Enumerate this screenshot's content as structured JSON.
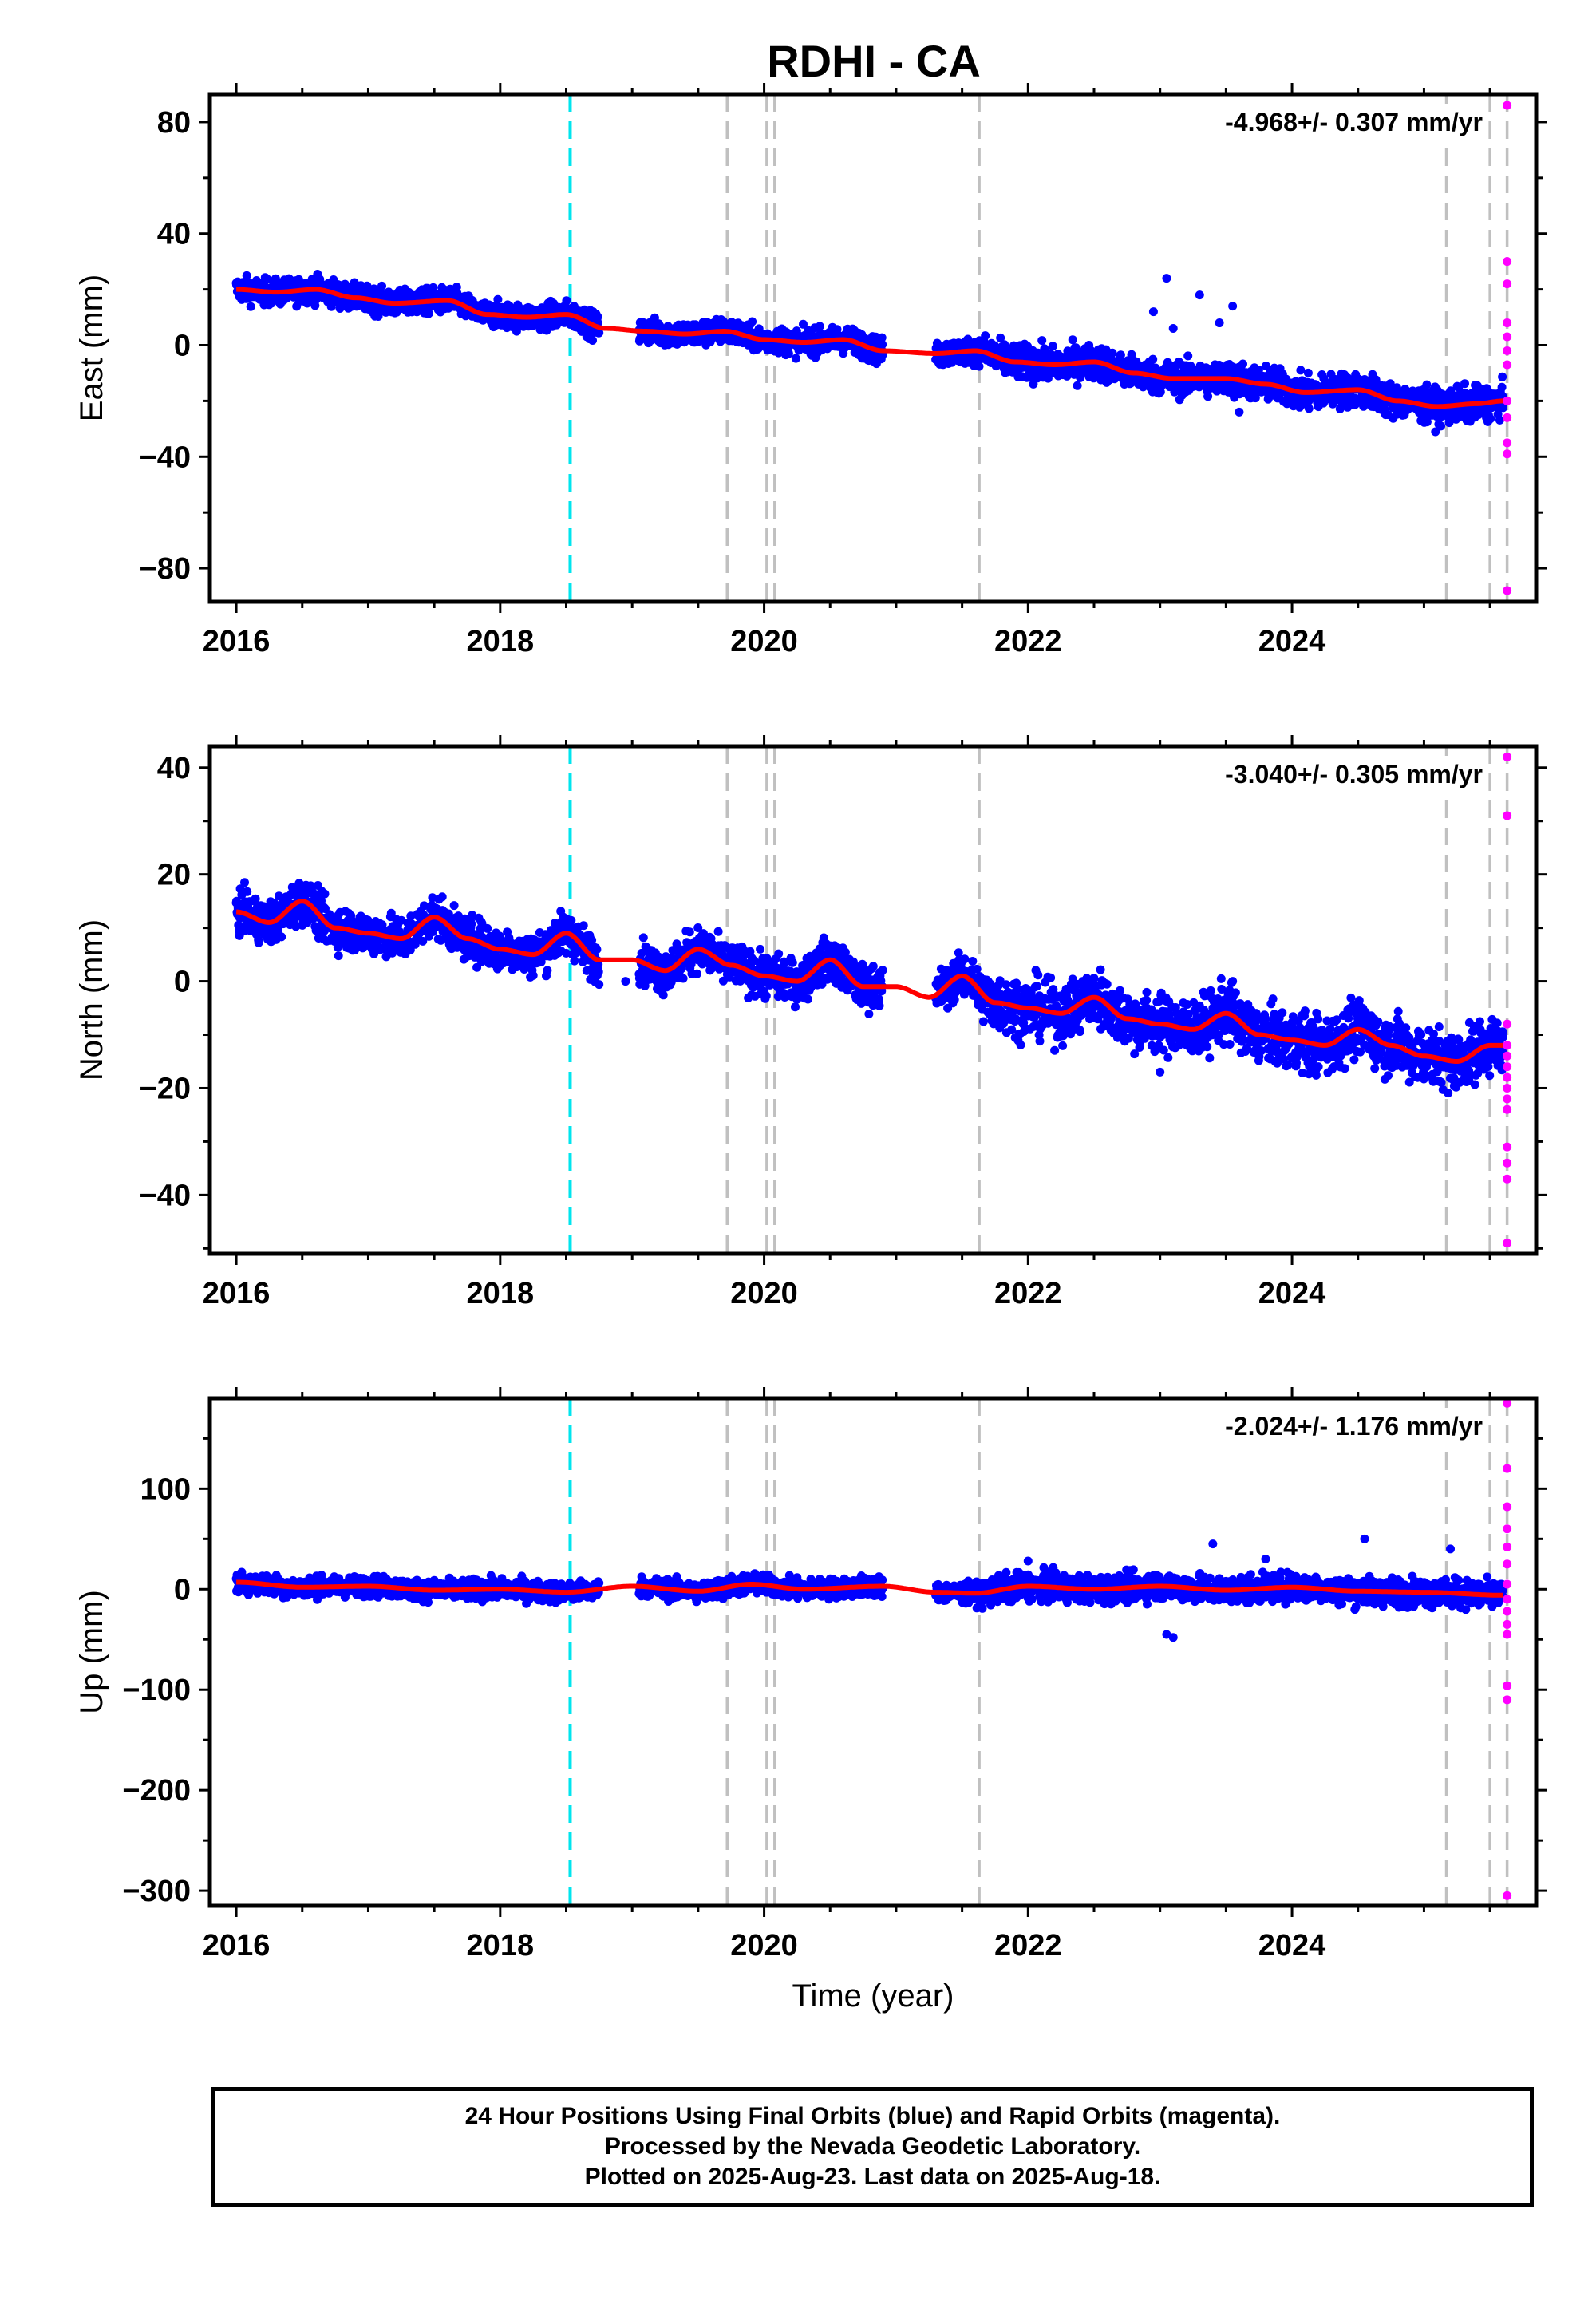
{
  "title": "RDHI - CA",
  "colors": {
    "final_orbits": "#0000ff",
    "rapid_orbits": "#ff00ff",
    "model": "#ff0000",
    "antenna_change": "#00e5ee",
    "event": "#c0c0c0"
  },
  "chart_data": [
    {
      "type": "scatter",
      "ylabel": "East (mm)",
      "xlabel": "",
      "xlim": [
        2015.8,
        2025.85
      ],
      "ylim": [
        -92,
        90
      ],
      "x_ticks": [
        2016,
        2018,
        2020,
        2022,
        2024
      ],
      "x_tick_labels": [
        "2016",
        "2018",
        "2020",
        "2022",
        "2024"
      ],
      "y_ticks": [
        80,
        40,
        0,
        -40,
        -80
      ],
      "y_tick_labels": [
        "80",
        "40",
        "0",
        "−40",
        "−80"
      ],
      "rate_label": "-4.968+/- 0.307 mm/yr",
      "antenna_change_year": 2018.53,
      "event_years": [
        2019.72,
        2020.02,
        2020.08,
        2021.63,
        2025.17,
        2025.5,
        2025.63
      ],
      "model": {
        "x": [
          2016.0,
          2016.3,
          2016.6,
          2016.9,
          2017.2,
          2017.6,
          2017.9,
          2018.2,
          2018.5,
          2018.8,
          2019.1,
          2019.4,
          2019.7,
          2020.0,
          2020.3,
          2020.6,
          2020.9,
          2021.3,
          2021.6,
          2021.9,
          2022.2,
          2022.5,
          2022.8,
          2023.1,
          2023.5,
          2023.8,
          2024.1,
          2024.5,
          2024.8,
          2025.1,
          2025.4,
          2025.6
        ],
        "y": [
          20,
          19,
          20,
          17,
          15,
          16,
          11,
          10,
          11,
          6,
          5,
          4,
          5,
          2,
          1,
          2,
          -2,
          -3,
          -2,
          -6,
          -7,
          -6,
          -10,
          -12,
          -12,
          -14,
          -17,
          -16,
          -20,
          -22,
          -21,
          -20
        ]
      },
      "final_orbits": {
        "start": 2016.0,
        "end": 2025.6,
        "spread": 3.2,
        "gaps": [
          [
            2018.75,
            2019.05
          ],
          [
            2020.9,
            2021.3
          ]
        ],
        "outliers": [
          [
            2022.95,
            12
          ],
          [
            2023.05,
            24
          ],
          [
            2023.3,
            18
          ],
          [
            2023.45,
            8
          ],
          [
            2023.55,
            14
          ],
          [
            2023.6,
            -24
          ],
          [
            2023.1,
            6
          ]
        ]
      },
      "rapid_orbits": {
        "x": [
          2025.63,
          2025.63,
          2025.63,
          2025.63,
          2025.63,
          2025.63,
          2025.63,
          2025.63,
          2025.63,
          2025.63,
          2025.63,
          2025.63
        ],
        "y": [
          86,
          30,
          22,
          8,
          3,
          -2,
          -7,
          -20,
          -26,
          -35,
          -39,
          -88
        ]
      }
    },
    {
      "type": "scatter",
      "ylabel": "North (mm)",
      "xlabel": "",
      "xlim": [
        2015.8,
        2025.85
      ],
      "ylim": [
        -51,
        44
      ],
      "x_ticks": [
        2016,
        2018,
        2020,
        2022,
        2024
      ],
      "x_tick_labels": [
        "2016",
        "2018",
        "2020",
        "2022",
        "2024"
      ],
      "y_ticks": [
        40,
        20,
        0,
        -20,
        -40
      ],
      "y_tick_labels": [
        "40",
        "20",
        "0",
        "−20",
        "−40"
      ],
      "rate_label": "-3.040+/- 0.305 mm/yr",
      "antenna_change_year": 2018.53,
      "event_years": [
        2019.72,
        2020.02,
        2020.08,
        2021.63,
        2025.17,
        2025.5,
        2025.63
      ],
      "model": {
        "x": [
          2016.0,
          2016.25,
          2016.5,
          2016.75,
          2017.0,
          2017.25,
          2017.5,
          2017.75,
          2018.0,
          2018.25,
          2018.5,
          2018.75,
          2019.0,
          2019.25,
          2019.5,
          2019.75,
          2020.0,
          2020.25,
          2020.5,
          2020.75,
          2021.0,
          2021.25,
          2021.5,
          2021.75,
          2022.0,
          2022.25,
          2022.5,
          2022.75,
          2023.0,
          2023.25,
          2023.5,
          2023.75,
          2024.0,
          2024.25,
          2024.5,
          2024.75,
          2025.0,
          2025.25,
          2025.5,
          2025.6
        ],
        "y": [
          13,
          11,
          15,
          10,
          9,
          8,
          12,
          8,
          6,
          5,
          9,
          4,
          4,
          2,
          6,
          3,
          1,
          0,
          4,
          -1,
          -1,
          -3,
          1,
          -4,
          -5,
          -6,
          -3,
          -7,
          -8,
          -9,
          -6,
          -10,
          -11,
          -12,
          -9,
          -12,
          -14,
          -15,
          -12,
          -12
        ]
      },
      "final_orbits": {
        "start": 2016.0,
        "end": 2025.6,
        "spread": 2.8,
        "gaps": [
          [
            2018.75,
            2019.05
          ],
          [
            2020.9,
            2021.3
          ]
        ],
        "outliers": [
          [
            2018.95,
            0
          ],
          [
            2023.0,
            -17
          ],
          [
            2023.55,
            0
          ],
          [
            2024.2,
            -16
          ]
        ]
      },
      "rapid_orbits": {
        "x": [
          2025.63,
          2025.63,
          2025.63,
          2025.63,
          2025.63,
          2025.63,
          2025.63,
          2025.63,
          2025.63,
          2025.63,
          2025.63,
          2025.63,
          2025.63,
          2025.63
        ],
        "y": [
          42,
          31,
          -8,
          -12,
          -14,
          -16,
          -20,
          -22,
          -24,
          -31,
          -34,
          -37,
          -49,
          -18
        ]
      }
    },
    {
      "type": "scatter",
      "ylabel": "Up (mm)",
      "xlabel": "Time (year)",
      "xlim": [
        2015.8,
        2025.85
      ],
      "ylim": [
        -315,
        190
      ],
      "x_ticks": [
        2016,
        2018,
        2020,
        2022,
        2024
      ],
      "x_tick_labels": [
        "2016",
        "2018",
        "2020",
        "2022",
        "2024"
      ],
      "y_ticks": [
        100,
        0,
        -100,
        -200,
        -300
      ],
      "y_tick_labels": [
        "100",
        "0",
        "−100",
        "−200",
        "−300"
      ],
      "rate_label": "-2.024+/- 1.176 mm/yr",
      "antenna_change_year": 2018.53,
      "event_years": [
        2019.72,
        2020.02,
        2020.08,
        2021.63,
        2025.17,
        2025.5,
        2025.63
      ],
      "model": {
        "x": [
          2016.0,
          2016.5,
          2017.0,
          2017.5,
          2018.0,
          2018.5,
          2019.0,
          2019.5,
          2019.9,
          2020.3,
          2020.9,
          2021.3,
          2021.6,
          2022.0,
          2022.5,
          2023.0,
          2023.5,
          2024.0,
          2024.5,
          2025.0,
          2025.6
        ],
        "y": [
          7,
          2,
          3,
          -1,
          0,
          -3,
          3,
          -2,
          5,
          0,
          3,
          -3,
          -4,
          3,
          0,
          3,
          -1,
          2,
          -2,
          -3,
          -6
        ]
      },
      "final_orbits": {
        "start": 2016.0,
        "end": 2025.6,
        "spread": 7,
        "gaps": [
          [
            2018.75,
            2019.05
          ],
          [
            2020.9,
            2021.3
          ]
        ],
        "outliers": [
          [
            2023.05,
            -45
          ],
          [
            2023.1,
            -48
          ],
          [
            2023.4,
            45
          ],
          [
            2024.55,
            50
          ],
          [
            2025.2,
            40
          ],
          [
            2022.0,
            28
          ],
          [
            2023.8,
            30
          ]
        ]
      },
      "rapid_orbits": {
        "x": [
          2025.63,
          2025.63,
          2025.63,
          2025.63,
          2025.63,
          2025.63,
          2025.63,
          2025.63,
          2025.63,
          2025.63,
          2025.63,
          2025.63,
          2025.63,
          2025.63
        ],
        "y": [
          185,
          120,
          82,
          60,
          42,
          25,
          5,
          -10,
          -22,
          -35,
          -45,
          -96,
          -110,
          -305
        ]
      }
    }
  ],
  "footer": {
    "line1": "24 Hour Positions Using Final Orbits (blue) and Rapid Orbits (magenta).",
    "line2": "Processed by the Nevada Geodetic Laboratory.",
    "line3": "Plotted on 2025-Aug-23. Last data on 2025-Aug-18."
  }
}
